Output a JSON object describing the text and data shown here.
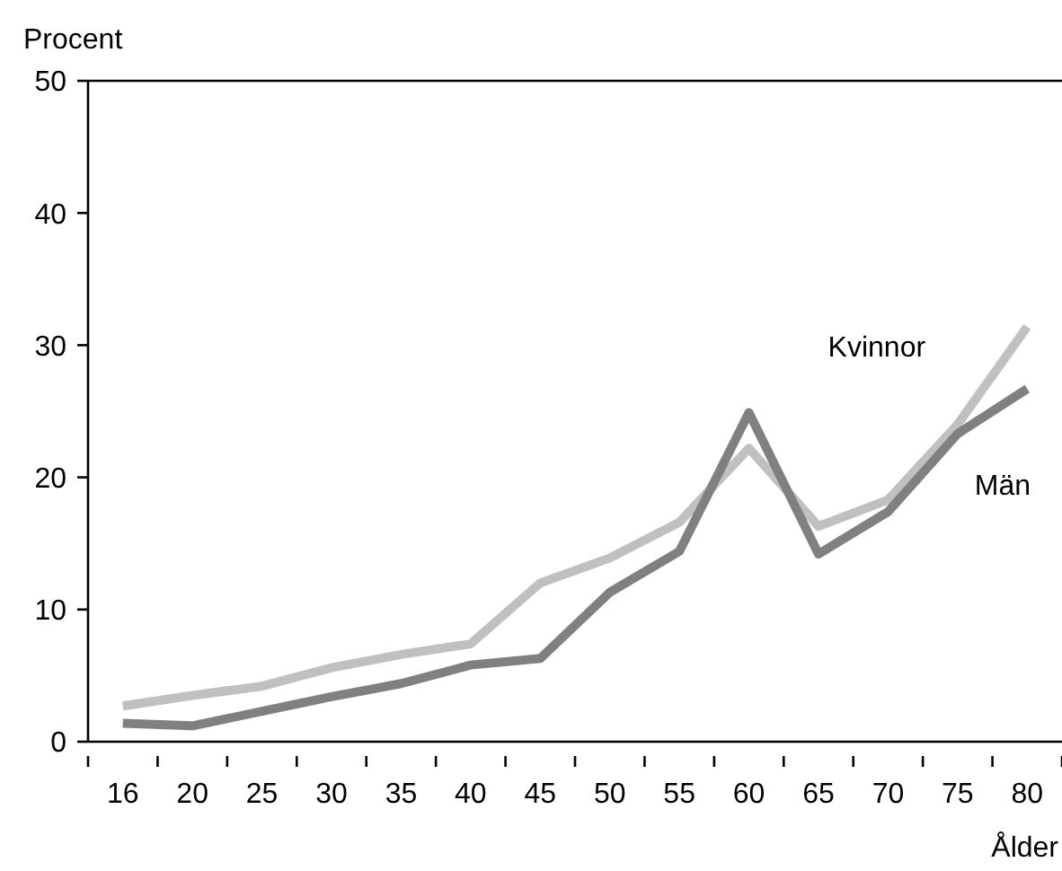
{
  "chart_data": {
    "type": "line",
    "xlabel": "Ålder",
    "ylabel": "Procent",
    "categories": [
      "16",
      "20",
      "25",
      "30",
      "35",
      "40",
      "45",
      "50",
      "55",
      "60",
      "65",
      "70",
      "75",
      "80"
    ],
    "ylim": [
      0,
      50
    ],
    "yticks": [
      0,
      10,
      20,
      30,
      40,
      50
    ],
    "series": [
      {
        "name": "Kvinnor",
        "color": "#c0c0c0",
        "values": [
          2.7,
          3.5,
          4.2,
          5.6,
          6.6,
          7.4,
          12.0,
          13.9,
          16.6,
          22.2,
          16.3,
          18.3,
          24.0,
          31.4
        ]
      },
      {
        "name": "Män",
        "color": "#808080",
        "values": [
          1.4,
          1.2,
          2.3,
          3.4,
          4.4,
          5.8,
          6.3,
          11.3,
          14.4,
          24.9,
          14.2,
          17.4,
          23.3,
          26.7
        ]
      }
    ]
  }
}
